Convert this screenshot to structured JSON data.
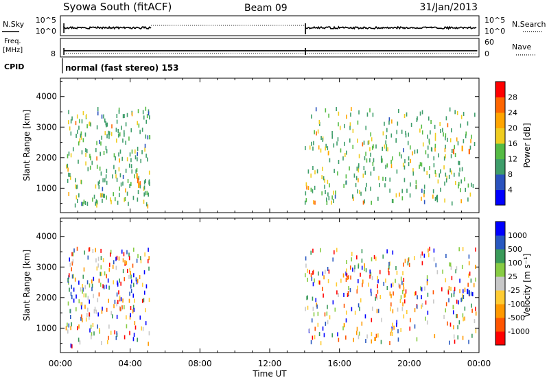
{
  "header": {
    "station": "Syowa South (fitACF)",
    "beam": "Beam 09",
    "date": "31/Jan/2013"
  },
  "nsky_panel": {
    "label": "N.Sky",
    "left_ticks": [
      "10^5",
      "10^0"
    ],
    "right_ticks": [
      "10^5",
      "10^0"
    ],
    "right_label": "N.Search"
  },
  "freq_panel": {
    "label_line1": "Freq.",
    "label_line2": "[MHz]",
    "left_tick": "8",
    "right_ticks": [
      "60",
      "0"
    ],
    "right_label": "Nave"
  },
  "cpid": {
    "label": "CPID",
    "text": "normal (fast stereo) 153"
  },
  "colors": {
    "power": [
      "#0000ff",
      "#2a52be",
      "#3e9d6a",
      "#55bb44",
      "#f0cd20",
      "#ffa500",
      "#ff6600",
      "#ff0000"
    ],
    "velocity": [
      "#ff0000",
      "#ff5500",
      "#ff9900",
      "#ffcc33",
      "#c8c8c8",
      "#88cc44",
      "#3a9a5a",
      "#2858c0",
      "#0000ff"
    ]
  },
  "chart_data": [
    {
      "type": "scatter",
      "name": "power",
      "ylabel": "Slant Range [km]",
      "yticks": [
        "1000",
        "2000",
        "3000",
        "4000"
      ],
      "ylim": [
        200,
        4600
      ],
      "xlim": [
        0,
        24
      ],
      "colorbar": {
        "label": "Power [dB]",
        "ticks": [
          "4",
          "8",
          "12",
          "16",
          "20",
          "24",
          "28"
        ],
        "range": [
          0,
          32
        ]
      },
      "clusters": [
        {
          "t0": 0.3,
          "t1": 5.1,
          "r0": 400,
          "r1": 3600,
          "n": 230
        },
        {
          "t0": 14.0,
          "t1": 23.8,
          "r0": 500,
          "r1": 3600,
          "n": 330
        }
      ],
      "points": [
        {
          "t": 4.35,
          "r": 1400,
          "v": 22
        },
        {
          "t": 4.4,
          "r": 1250,
          "v": 24
        },
        {
          "t": 4.45,
          "r": 1100,
          "v": 20
        },
        {
          "t": 22.5,
          "r": 2200,
          "v": 24
        },
        {
          "t": 23.0,
          "r": 2300,
          "v": 22
        },
        {
          "t": 23.4,
          "r": 2200,
          "v": 26
        }
      ]
    },
    {
      "type": "scatter",
      "name": "velocity",
      "ylabel": "Slant Range [km]",
      "yticks": [
        "1000",
        "2000",
        "3000",
        "4000"
      ],
      "ylim": [
        200,
        4600
      ],
      "xlim": [
        0,
        24
      ],
      "colorbar": {
        "label": "Velocity [m s⁻¹]",
        "ticks": [
          "-1000",
          "-500",
          "-100",
          "-25",
          "25",
          "100",
          "500",
          "1000"
        ],
        "range": [
          -1200,
          1200
        ]
      },
      "clusters": [
        {
          "t0": 0.3,
          "t1": 5.1,
          "r0": 400,
          "r1": 3600,
          "n": 230
        },
        {
          "t0": 14.0,
          "t1": 23.8,
          "r0": 500,
          "r1": 3600,
          "n": 330
        }
      ],
      "points": [
        {
          "t": 23.3,
          "r": 2200,
          "v": 1100
        },
        {
          "t": 23.4,
          "r": 2150,
          "v": 900
        }
      ]
    }
  ],
  "xaxis": {
    "ticks": [
      "00:00",
      "04:00",
      "08:00",
      "12:00",
      "16:00",
      "20:00",
      "00:00"
    ],
    "label": "Time UT"
  }
}
